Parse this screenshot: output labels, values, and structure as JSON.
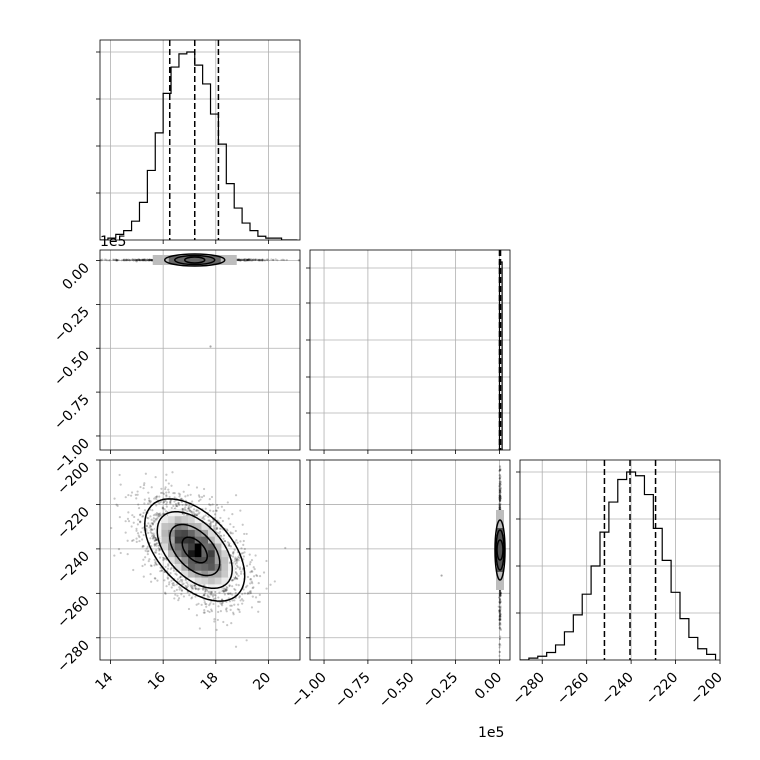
{
  "chart_data": {
    "type": "corner",
    "grid": true,
    "colors": {
      "hist": "#000000",
      "grid": "#b0b0b0",
      "scatter": "#000000",
      "density": "#000000"
    },
    "params": [
      {
        "range": [
          13.6,
          21.2
        ],
        "ticks": [
          "14",
          "16",
          "18",
          "20"
        ],
        "tick_values": [
          14,
          16,
          18,
          20
        ],
        "quantiles": [
          16.25,
          17.2,
          18.1
        ],
        "mean": 17.2,
        "sd": 0.95
      },
      {
        "range": [
          -1.08,
          0.06
        ],
        "ticks": [
          "0.00",
          "−0.25",
          "−0.50",
          "−0.75",
          "−1.00"
        ],
        "tick_values": [
          0.0,
          -0.25,
          -0.5,
          -0.75,
          -1.0
        ],
        "quantiles": [
          0.0,
          0.003,
          0.006
        ],
        "offset_label": "1e5"
      },
      {
        "range": [
          -290,
          -200
        ],
        "ticks": [
          "−280",
          "−260",
          "−240",
          "−220",
          "−200"
        ],
        "tick_values": [
          -280,
          -260,
          -240,
          -220,
          -200
        ],
        "quantiles": [
          -252,
          -240.5,
          -229
        ],
        "mean": -240.5,
        "sd": 11.5
      }
    ],
    "histograms": [
      {
        "param": 0,
        "bin_edges": [
          13.6,
          13.9,
          14.2,
          14.5,
          14.8,
          15.1,
          15.4,
          15.7,
          16.0,
          16.3,
          16.6,
          16.9,
          17.2,
          17.5,
          17.8,
          18.1,
          18.4,
          18.7,
          19.0,
          19.3,
          19.6,
          19.9,
          20.2,
          20.5,
          20.8,
          21.1
        ],
        "counts": [
          0,
          1,
          3,
          5,
          10,
          20,
          37,
          57,
          78,
          92,
          99,
          100,
          93,
          83,
          67,
          51,
          30,
          17,
          9,
          5,
          2,
          1,
          1,
          0,
          0
        ]
      },
      {
        "param": 1,
        "bin_edges": [
          0.0,
          0.015
        ],
        "counts": [
          1
        ]
      },
      {
        "param": 2,
        "bin_edges": [
          -290,
          -286,
          -282,
          -278,
          -274,
          -270,
          -266,
          -262,
          -258,
          -254,
          -250,
          -246,
          -242,
          -238,
          -234,
          -230,
          -226,
          -222,
          -218,
          -214,
          -210,
          -206,
          -202
        ],
        "counts": [
          0,
          1,
          2,
          4,
          8,
          15,
          24,
          35,
          50,
          68,
          84,
          96,
          100,
          98,
          88,
          70,
          53,
          36,
          22,
          12,
          6,
          3
        ]
      }
    ],
    "pairs": [
      {
        "x_param": 0,
        "y_param": 1,
        "correlation": 0.0,
        "y_center": 0.003,
        "y_spread": 0.002,
        "outliers": [
          [
            17.8,
            -0.49
          ],
          [
            16.6,
            0.0
          ]
        ]
      },
      {
        "x_param": 0,
        "y_param": 2,
        "correlation": -0.5,
        "contour_levels": [
          0.5,
          1.0,
          1.5,
          2.0
        ]
      },
      {
        "x_param": 1,
        "y_param": 2,
        "correlation": 0.0,
        "x_center": 0.003,
        "x_spread": 0.002,
        "outliers": [
          [
            -0.33,
            -252
          ]
        ]
      }
    ]
  }
}
